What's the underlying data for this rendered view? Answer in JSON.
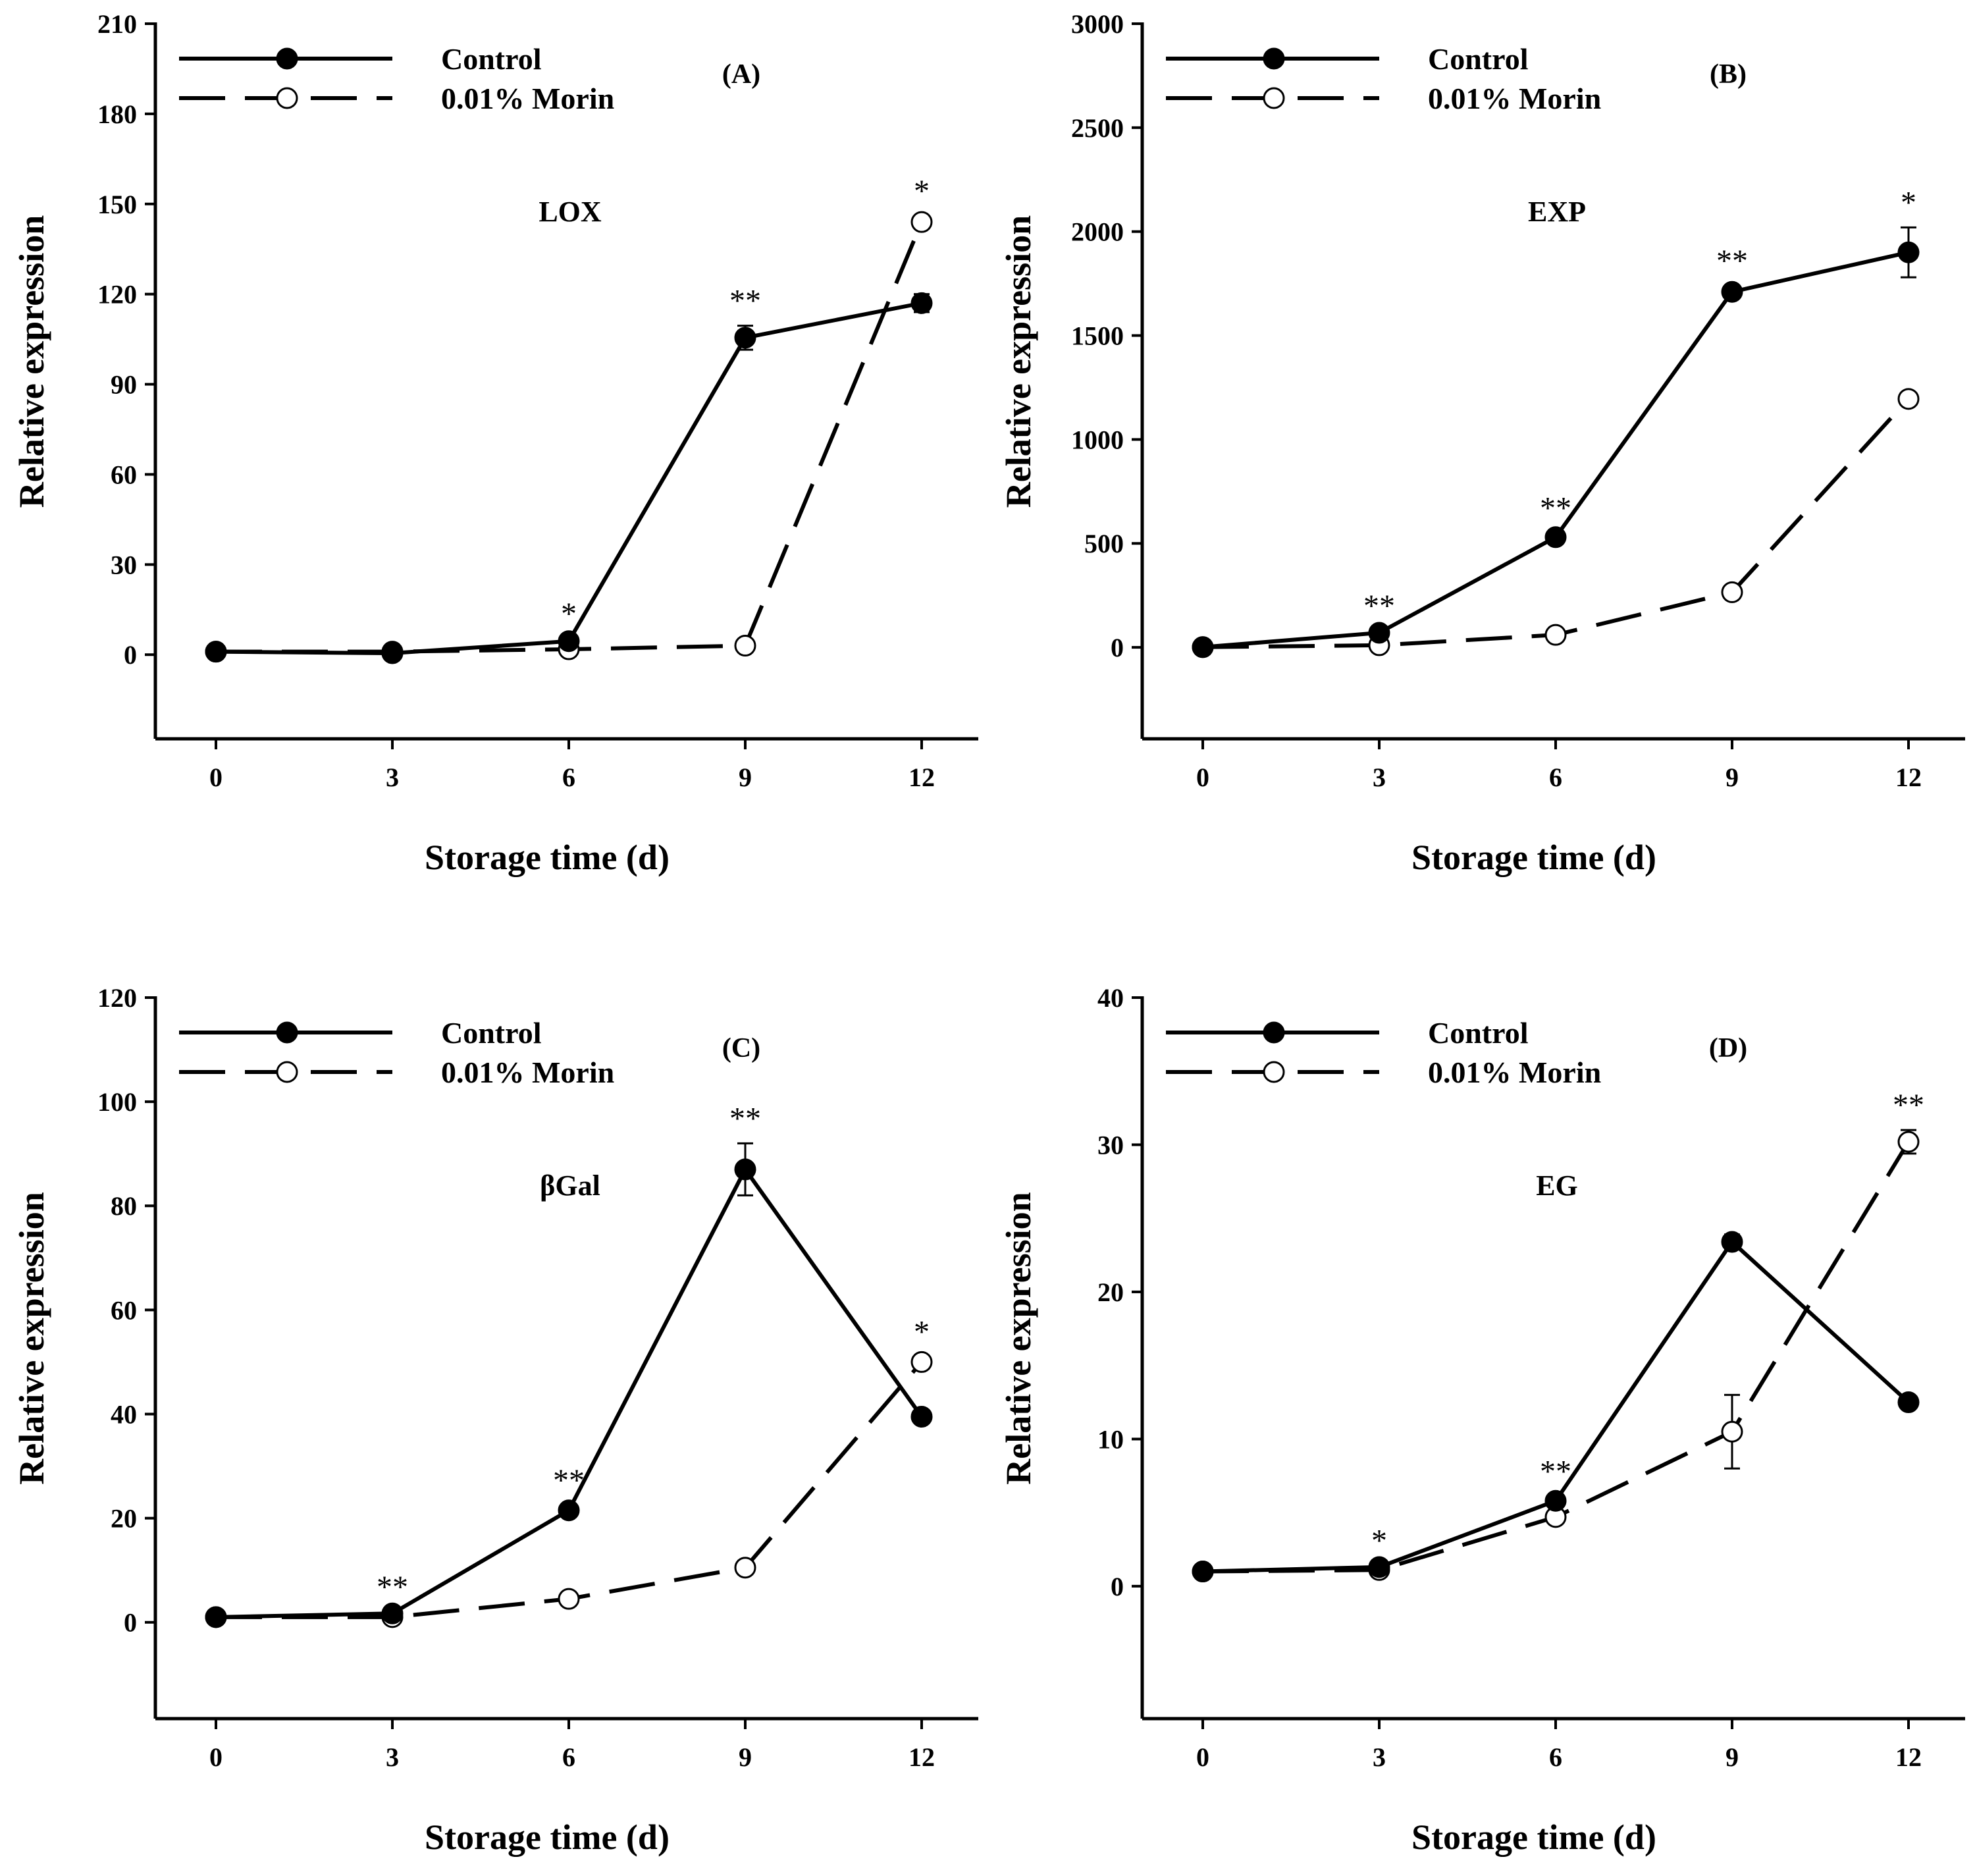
{
  "figure": {
    "xlabel": "Storage time (d)",
    "ylabel": "Relative expression",
    "legend": {
      "control": "Control",
      "treatment": "0.01% Morin"
    }
  },
  "chart_data": [
    {
      "type": "line",
      "panel": "(A)",
      "gene": "LOX",
      "title": "LOX",
      "xlabel": "Storage time (d)",
      "ylabel": "Relative expression",
      "x": [
        0,
        3,
        6,
        9,
        12
      ],
      "xticks": [
        "0",
        "3",
        "6",
        "9",
        "12"
      ],
      "ylim": [
        -28,
        210
      ],
      "yticks": [
        "0",
        "30",
        "60",
        "90",
        "120",
        "150",
        "180",
        "210"
      ],
      "legend_position": "top-left",
      "series": [
        {
          "name": "Control",
          "style": "solid-filled",
          "values": [
            1,
            0.5,
            4.5,
            105.5,
            117
          ],
          "errors": [
            0.5,
            0.3,
            0.8,
            4,
            3
          ]
        },
        {
          "name": "0.01% Morin",
          "style": "dashed-open",
          "values": [
            1,
            1,
            1.8,
            3,
            144
          ],
          "errors": [
            0.3,
            0.3,
            0.5,
            0.5,
            2
          ]
        }
      ],
      "annotations": [
        {
          "x": 6,
          "text": "*"
        },
        {
          "x": 9,
          "text": "**"
        },
        {
          "x": 12,
          "text": "*"
        }
      ]
    },
    {
      "type": "line",
      "panel": "(B)",
      "gene": "EXP",
      "title": "EXP",
      "xlabel": "Storage time (d)",
      "ylabel": "Relative expression",
      "x": [
        0,
        3,
        6,
        9,
        12
      ],
      "xticks": [
        "0",
        "3",
        "6",
        "9",
        "12"
      ],
      "ylim": [
        -440,
        3000
      ],
      "yticks": [
        "0",
        "500",
        "1000",
        "1500",
        "2000",
        "2500",
        "3000"
      ],
      "legend_position": "top-left",
      "series": [
        {
          "name": "Control",
          "style": "solid-filled",
          "values": [
            1,
            70,
            530,
            1710,
            1900
          ],
          "errors": [
            1,
            10,
            20,
            30,
            120
          ]
        },
        {
          "name": "0.01% Morin",
          "style": "dashed-open",
          "values": [
            1,
            10,
            60,
            265,
            1195
          ],
          "errors": [
            1,
            5,
            10,
            15,
            30
          ]
        }
      ],
      "annotations": [
        {
          "x": 3,
          "text": "**"
        },
        {
          "x": 6,
          "text": "**"
        },
        {
          "x": 9,
          "text": "**"
        },
        {
          "x": 12,
          "text": "*"
        }
      ]
    },
    {
      "type": "line",
      "panel": "(C)",
      "gene": "βGal",
      "title": "βGal",
      "xlabel": "Storage time (d)",
      "ylabel": "Relative expression",
      "x": [
        0,
        3,
        6,
        9,
        12
      ],
      "xticks": [
        "0",
        "3",
        "6",
        "9",
        "12"
      ],
      "ylim": [
        -18.5,
        120
      ],
      "yticks": [
        "0",
        "20",
        "40",
        "60",
        "80",
        "100",
        "120"
      ],
      "legend_position": "top-left",
      "series": [
        {
          "name": "Control",
          "style": "solid-filled",
          "values": [
            1,
            1.7,
            21.5,
            87,
            39.5
          ],
          "errors": [
            0.2,
            0.3,
            1,
            5,
            1
          ]
        },
        {
          "name": "0.01% Morin",
          "style": "dashed-open",
          "values": [
            1,
            1,
            4.5,
            10.5,
            50
          ],
          "errors": [
            0.2,
            0.2,
            0.5,
            0.5,
            1
          ]
        }
      ],
      "annotations": [
        {
          "x": 3,
          "text": "**"
        },
        {
          "x": 6,
          "text": "**"
        },
        {
          "x": 9,
          "text": "**"
        },
        {
          "x": 12,
          "text": "*"
        }
      ]
    },
    {
      "type": "line",
      "panel": "(D)",
      "gene": "EG",
      "title": "EG",
      "xlabel": "Storage time (d)",
      "ylabel": "Relative expression",
      "x": [
        0,
        3,
        6,
        9,
        12
      ],
      "xticks": [
        "0",
        "3",
        "6",
        "9",
        "12"
      ],
      "ylim": [
        -9,
        40
      ],
      "yticks": [
        "0",
        "10",
        "20",
        "30",
        "40"
      ],
      "legend_position": "top-left",
      "series": [
        {
          "name": "Control",
          "style": "solid-filled",
          "values": [
            1,
            1.3,
            5.8,
            23.4,
            12.5
          ],
          "errors": [
            0.1,
            0.1,
            0.3,
            0.5,
            0.2
          ]
        },
        {
          "name": "0.01% Morin",
          "style": "dashed-open",
          "values": [
            1,
            1.1,
            4.7,
            10.5,
            30.2
          ],
          "errors": [
            0.1,
            0.1,
            0.3,
            2.5,
            0.8
          ]
        }
      ],
      "annotations": [
        {
          "x": 3,
          "text": "*"
        },
        {
          "x": 6,
          "text": "**"
        },
        {
          "x": 12,
          "text": "**"
        }
      ]
    }
  ]
}
